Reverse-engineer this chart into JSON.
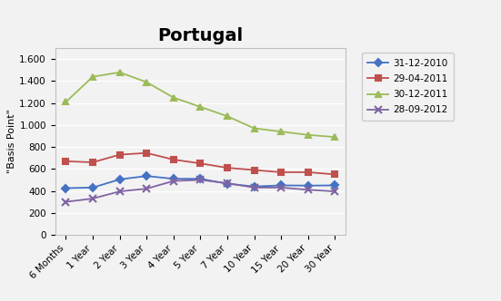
{
  "title": "Portugal",
  "ylabel": "\"Basis Point\"",
  "x_labels": [
    "6 Months",
    "1 Year",
    "2 Year",
    "3 Year",
    "4 Year",
    "5 Year",
    "7 Year",
    "10 Year",
    "15 Year",
    "20 Year",
    "30 Year"
  ],
  "series": [
    {
      "label": "31-12-2010",
      "color": "#4472C4",
      "marker": "D",
      "values": [
        425,
        430,
        505,
        535,
        510,
        510,
        465,
        440,
        450,
        448,
        450
      ]
    },
    {
      "label": "29-04-2011",
      "color": "#C0504D",
      "marker": "s",
      "values": [
        670,
        660,
        730,
        745,
        685,
        650,
        610,
        590,
        570,
        570,
        550
      ]
    },
    {
      "label": "30-12-2011",
      "color": "#9BBB59",
      "marker": "^",
      "values": [
        1210,
        1440,
        1480,
        1390,
        1250,
        1165,
        1080,
        970,
        940,
        910,
        890
      ]
    },
    {
      "label": "28-09-2012",
      "color": "#8064A2",
      "marker": "x",
      "values": [
        300,
        330,
        395,
        420,
        490,
        500,
        470,
        430,
        430,
        410,
        395
      ]
    }
  ],
  "ylim": [
    0,
    1700
  ],
  "yticks": [
    0,
    200,
    400,
    600,
    800,
    1000,
    1200,
    1400,
    1600
  ],
  "ytick_labels": [
    "0",
    "200",
    "400",
    "600",
    "800",
    "1.000",
    "1.200",
    "1.400",
    "1.600"
  ],
  "background_color": "#f2f2f2",
  "plot_bg_color": "#f2f2f2",
  "outer_bg_color": "#f2f2f2",
  "grid_color": "#ffffff",
  "title_fontsize": 14,
  "axis_fontsize": 7.5,
  "ylabel_fontsize": 8
}
